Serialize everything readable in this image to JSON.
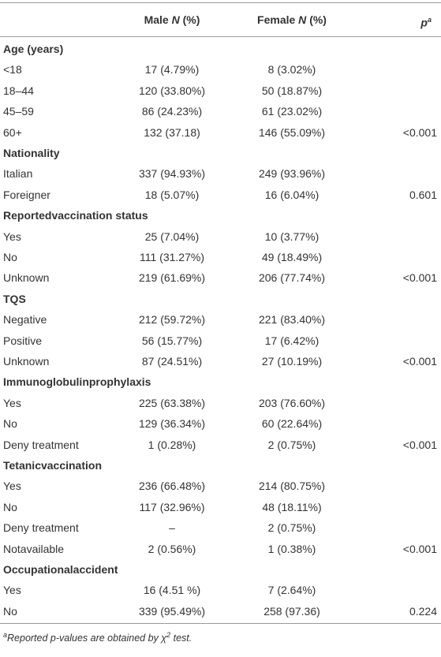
{
  "header": {
    "male": [
      "Male",
      "N",
      "(%)"
    ],
    "female": [
      "Female",
      "N",
      "(%)"
    ],
    "p": [
      "p",
      "a"
    ]
  },
  "sections": [
    {
      "title": "Age (years)",
      "rows": [
        {
          "label": "<18",
          "male": "17 (4.79%)",
          "female": "8 (3.02%)"
        },
        {
          "label": "18–44",
          "male": "120 (33.80%)",
          "female": "50 (18.87%)"
        },
        {
          "label": "45–59",
          "male": "86 (24.23%)",
          "female": "61 (23.02%)"
        },
        {
          "label": "60+",
          "male": "132 (37.18)",
          "female": "146 (55.09%)",
          "p": "<0.001"
        }
      ]
    },
    {
      "title": "Nationality",
      "rows": [
        {
          "label": "Italian",
          "male": "337 (94.93%)",
          "female": "249 (93.96%)"
        },
        {
          "label": "Foreigner",
          "male": "18 (5.07%)",
          "female": "16 (6.04%)",
          "p": "0.601"
        }
      ]
    },
    {
      "title": "Reportedvaccination status",
      "rows": [
        {
          "label": "Yes",
          "male": "25 (7.04%)",
          "female": "10 (3.77%)"
        },
        {
          "label": "No",
          "male": "111 (31.27%)",
          "female": "49 (18.49%)"
        },
        {
          "label": "Unknown",
          "male": "219 (61.69%)",
          "female": "206 (77.74%)",
          "p": "<0.001"
        }
      ]
    },
    {
      "title": "TQS",
      "rows": [
        {
          "label": "Negative",
          "male": "212 (59.72%)",
          "female": "221 (83.40%)"
        },
        {
          "label": "Positive",
          "male": "56 (15.77%)",
          "female": "17 (6.42%)"
        },
        {
          "label": "Unknown",
          "male": "87 (24.51%)",
          "female": "27 (10.19%)",
          "p": "<0.001"
        }
      ]
    },
    {
      "title": "Immunoglobulinprophylaxis",
      "rows": [
        {
          "label": "Yes",
          "male": "225 (63.38%)",
          "female": "203 (76.60%)"
        },
        {
          "label": "No",
          "male": "129 (36.34%)",
          "female": "60 (22.64%)"
        },
        {
          "label": "Deny treatment",
          "male": "1 (0.28%)",
          "female": "2 (0.75%)",
          "p": "<0.001"
        }
      ]
    },
    {
      "title": "Tetanicvaccination",
      "rows": [
        {
          "label": "Yes",
          "male": "236 (66.48%)",
          "female": "214 (80.75%)"
        },
        {
          "label": "No",
          "male": "117 (32.96%)",
          "female": "48 (18.11%)"
        },
        {
          "label": "Deny treatment",
          "male": "–",
          "female": "2 (0.75%)"
        },
        {
          "label": "Notavailable",
          "male": "2 (0.56%)",
          "female": "1 (0.38%)",
          "p": "<0.001"
        }
      ]
    },
    {
      "title": "Occupationalaccident",
      "rows": [
        {
          "label": "Yes",
          "male": "16 (4.51 %)",
          "female": "7 (2.64%)"
        },
        {
          "label": "No",
          "male": "339 (95.49%)",
          "female": "258 (97.36)",
          "p": "0.224"
        }
      ]
    }
  ],
  "footnote": [
    "a",
    "Reported p-values are obtained by χ",
    "2",
    " test."
  ]
}
